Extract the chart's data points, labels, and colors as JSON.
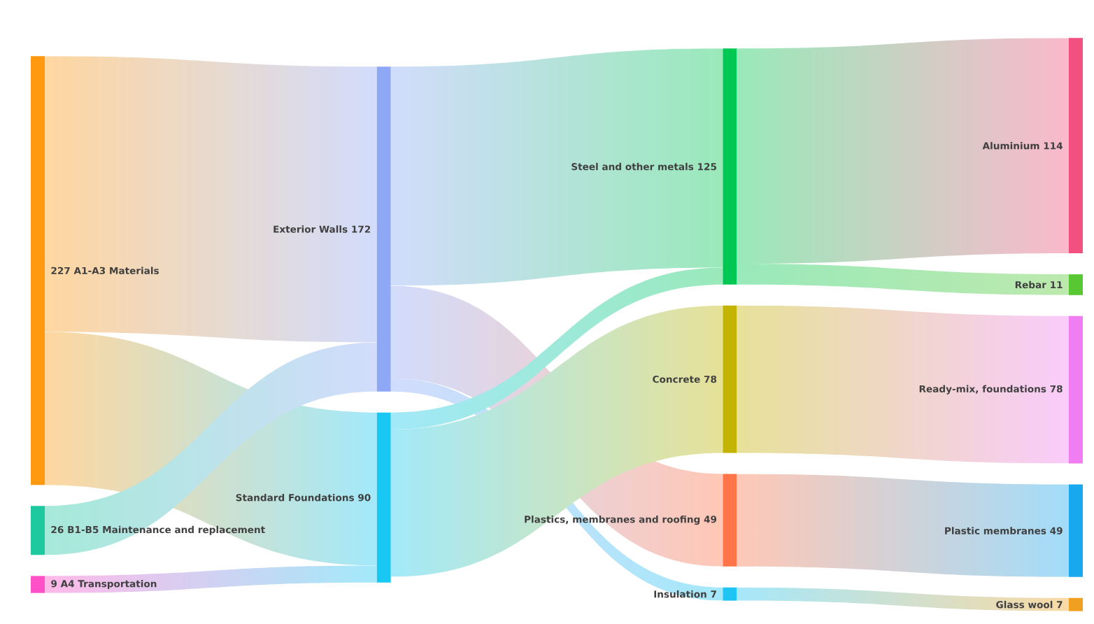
{
  "chart_data": {
    "type": "other",
    "categories": [
      "A1-A3 Materials",
      "B1-B5 Maintenance and replacement",
      "A4 Transportation",
      "Exterior Walls",
      "Standard Foundations",
      "Steel and other metals",
      "Concrete",
      "Plastics, membranes and roofing",
      "Insulation",
      "Aluminium",
      "Rebar",
      "Ready-mix, foundations",
      "Plastic membranes",
      "Glass wool"
    ],
    "data_labels": true,
    "values": [
      227,
      26,
      9,
      172,
      90,
      125,
      78,
      49,
      7,
      114,
      11,
      78,
      49,
      7
    ],
    "colors": [
      "#ff9a10",
      "#1ec9a0",
      "#ff50c8",
      "#8ea8f6",
      "#18c8f2",
      "#00c853",
      "#c2b400",
      "#ff7448",
      "#1ec4f2",
      "#f2507e",
      "#58c832",
      "#f07ef2",
      "#18a8f0",
      "#f0a020"
    ],
    "cells": [
      [
        null,
        null,
        null,
        true,
        true,
        null,
        null,
        null,
        null,
        null,
        null,
        null,
        null,
        null
      ],
      [
        null,
        null,
        null,
        true,
        null,
        null,
        null,
        null,
        null,
        null,
        null,
        null,
        null,
        null
      ],
      [
        null,
        null,
        null,
        null,
        true,
        null,
        null,
        null,
        null,
        null,
        null,
        null,
        null,
        null
      ],
      [
        null,
        null,
        null,
        null,
        null,
        true,
        null,
        true,
        true,
        null,
        null,
        null,
        null,
        null
      ],
      [
        null,
        null,
        null,
        null,
        null,
        true,
        true,
        null,
        null,
        null,
        null,
        null,
        null,
        null
      ],
      [
        null,
        null,
        null,
        null,
        null,
        null,
        null,
        null,
        null,
        true,
        true,
        null,
        null,
        null
      ],
      [
        null,
        null,
        null,
        null,
        null,
        null,
        null,
        null,
        null,
        null,
        null,
        true,
        null,
        null
      ],
      [
        null,
        null,
        null,
        null,
        null,
        null,
        null,
        null,
        null,
        null,
        null,
        null,
        true,
        null
      ],
      [
        null,
        null,
        null,
        null,
        null,
        null,
        null,
        null,
        null,
        null,
        null,
        null,
        null,
        true
      ],
      [
        null,
        null,
        null,
        null,
        null,
        null,
        null,
        null,
        null,
        null,
        null,
        null,
        null,
        null
      ],
      [
        null,
        null,
        null,
        null,
        null,
        null,
        null,
        null,
        null,
        null,
        null,
        null,
        null,
        null
      ],
      [
        null,
        null,
        null,
        null,
        null,
        null,
        null,
        null,
        null,
        null,
        null,
        null,
        null,
        null
      ],
      [
        null,
        null,
        null,
        null,
        null,
        null,
        null,
        null,
        null,
        null,
        null,
        null,
        null,
        null
      ],
      [
        null,
        null,
        null,
        null,
        null,
        null,
        null,
        null,
        null,
        null,
        null,
        null,
        null,
        null
      ]
    ]
  }
}
